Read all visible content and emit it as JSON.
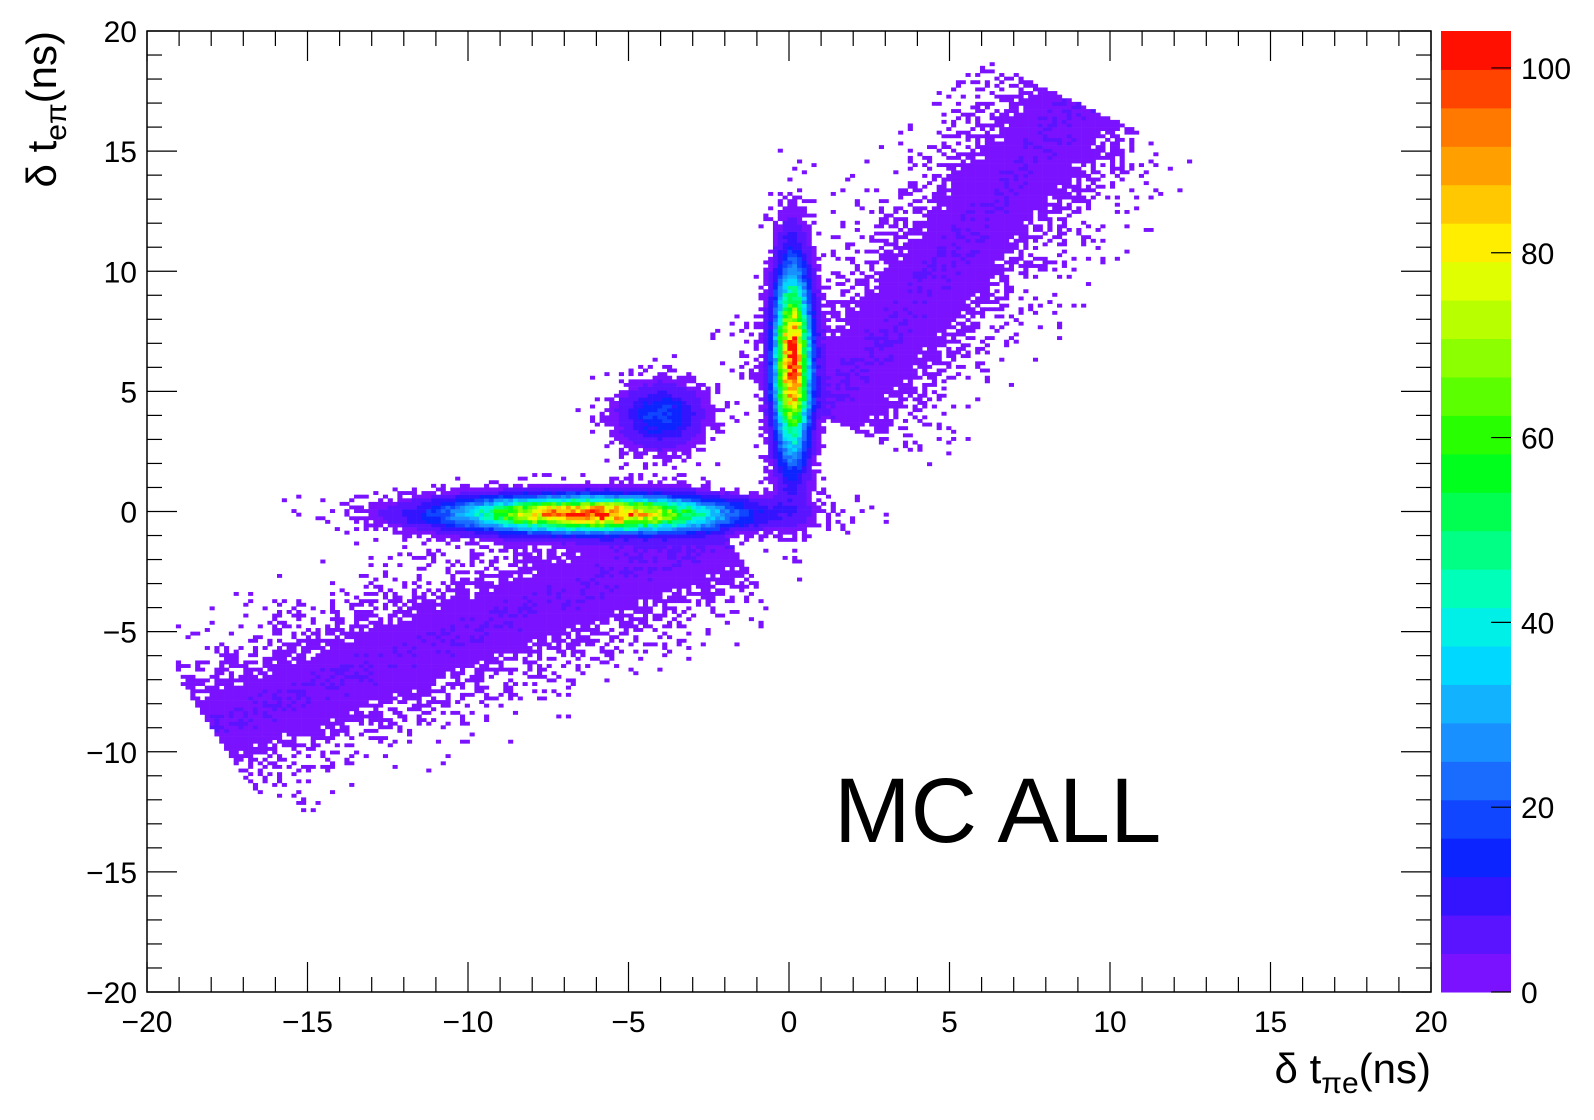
{
  "chart_data": {
    "type": "heatmap",
    "title": "",
    "annotation": "MC ALL",
    "xlabel": {
      "main": "δ t",
      "sub": "πe",
      "unit": "(ns)"
    },
    "ylabel": {
      "main": "δ t",
      "sub": "eπ",
      "unit": "(ns)"
    },
    "xlim": [
      -20,
      20
    ],
    "ylim": [
      -20,
      20
    ],
    "x_ticks": [
      -20,
      -15,
      -10,
      -5,
      0,
      5,
      10,
      15,
      20
    ],
    "y_ticks": [
      -20,
      -15,
      -10,
      -5,
      0,
      5,
      10,
      15,
      20
    ],
    "x_tick_labels": [
      "−20",
      "−15",
      "−10",
      "−5",
      "0",
      "5",
      "10",
      "15",
      "20"
    ],
    "y_tick_labels": [
      "−20",
      "−15",
      "−10",
      "−5",
      "0",
      "5",
      "10",
      "15",
      "20"
    ],
    "colorscale": {
      "range": [
        0,
        104
      ],
      "ticks": [
        0,
        20,
        40,
        60,
        80,
        100
      ],
      "tick_labels": [
        "0",
        "20",
        "40",
        "60",
        "80",
        "100"
      ],
      "colors": [
        "#7a12ff",
        "#5a14ff",
        "#3414ff",
        "#0c24ff",
        "#1046ff",
        "#1a6cff",
        "#1890ff",
        "#12b2ff",
        "#00d8ff",
        "#00f0e8",
        "#00ffb8",
        "#00ff84",
        "#00ff50",
        "#00ff1c",
        "#28ff00",
        "#5cff00",
        "#8cff00",
        "#b8ff00",
        "#e0ff00",
        "#ffee00",
        "#ffc800",
        "#ffa000",
        "#ff7800",
        "#ff4400",
        "#ff1000"
      ]
    },
    "clusters": [
      {
        "name": "horizontal band",
        "cx": -6.2,
        "cy": -0.1,
        "sx": 2.6,
        "sy": 0.45,
        "peak": 100
      },
      {
        "name": "vertical band",
        "cx": 0.1,
        "cy": 6.2,
        "sx": 0.35,
        "sy": 2.4,
        "peak": 100
      },
      {
        "name": "central blob",
        "cx": -4.0,
        "cy": 4.0,
        "sx": 0.8,
        "sy": 0.8,
        "peak": 18
      },
      {
        "name": "diagonal tail lower",
        "from": [
          -18,
          -9
        ],
        "to": [
          -2,
          -1
        ],
        "peak": 4
      },
      {
        "name": "diagonal tail upper",
        "from": [
          1,
          4
        ],
        "to": [
          9,
          17
        ],
        "peak": 4
      }
    ]
  }
}
